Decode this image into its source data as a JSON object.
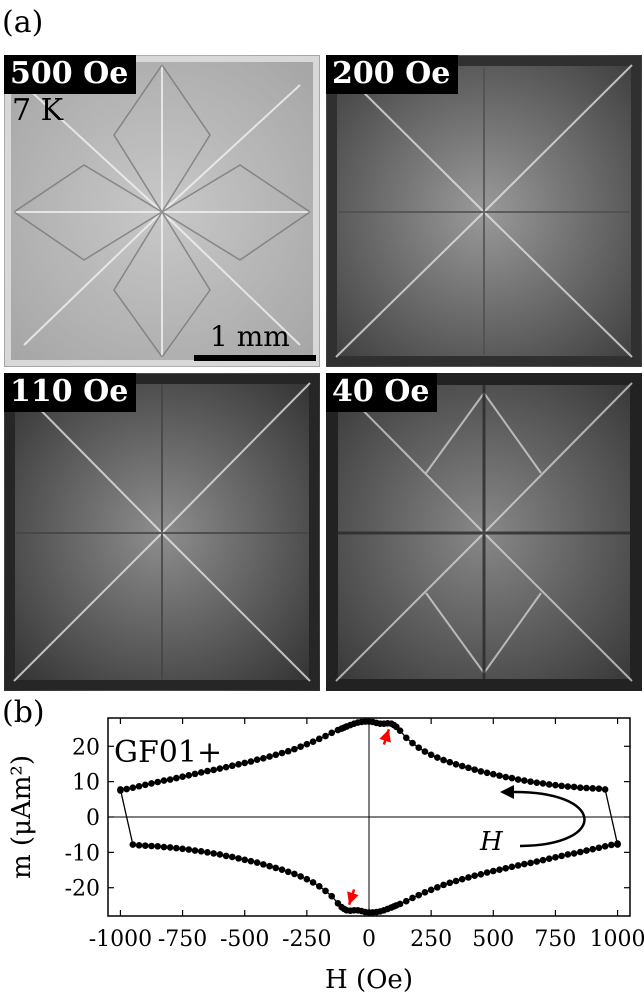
{
  "panel_a": {
    "label": "(a)",
    "images": [
      {
        "field": "500 Oe",
        "temperature": "7 K",
        "scalebar": "1 mm"
      },
      {
        "field": "200 Oe"
      },
      {
        "field": "110 Oe"
      },
      {
        "field": "40 Oe"
      }
    ]
  },
  "panel_b": {
    "label": "(b)",
    "sample_label": "GF01+",
    "loop_arrow_label": "H"
  },
  "chart_data": {
    "type": "scatter",
    "xlabel": "H (Oe)",
    "ylabel": "m (μAm²)",
    "xlim": [
      -1050,
      1050
    ],
    "ylim": [
      -28,
      28
    ],
    "xticks": [
      -1000,
      -750,
      -500,
      -250,
      0,
      250,
      500,
      750,
      1000
    ],
    "xtick_labels": [
      "-1000",
      "-750",
      "-500",
      "-250",
      "0",
      "250",
      "500",
      "750",
      "1000"
    ],
    "yticks": [
      -20,
      -10,
      0,
      10,
      20
    ],
    "ytick_labels": [
      "-20",
      "-10",
      "0",
      "10",
      "20"
    ],
    "grid": false,
    "series": [
      {
        "x": [
          1000,
          975,
          950,
          925,
          900,
          875,
          850,
          825,
          800,
          775,
          750,
          725,
          700,
          675,
          650,
          625,
          600,
          575,
          550,
          525,
          500,
          475,
          450,
          425,
          400,
          375,
          350,
          325,
          300,
          275,
          250,
          225,
          200,
          175,
          150,
          125,
          110,
          100,
          90,
          75,
          60,
          45,
          30,
          15,
          0,
          -15,
          -30,
          -45,
          -60,
          -75,
          -90,
          -100,
          -110,
          -125,
          -150,
          -175,
          -200,
          -225,
          -250,
          -275,
          -300,
          -325,
          -350,
          -375,
          -400,
          -425,
          -450,
          -475,
          -500,
          -525,
          -550,
          -575,
          -600,
          -625,
          -650,
          -675,
          -700,
          -725,
          -750,
          -775,
          -800,
          -825,
          -850,
          -875,
          -900,
          -925,
          -950,
          -1000
        ],
        "y": [
          -7.5,
          -7.9,
          -8.3,
          -8.7,
          -9.1,
          -9.5,
          -9.9,
          -10.3,
          -10.6,
          -11.0,
          -11.4,
          -11.8,
          -12.2,
          -12.6,
          -13.0,
          -13.3,
          -13.7,
          -14.1,
          -14.5,
          -14.9,
          -15.3,
          -15.7,
          -16.2,
          -16.6,
          -17.1,
          -17.6,
          -18.1,
          -18.6,
          -19.2,
          -19.9,
          -20.6,
          -21.3,
          -22.1,
          -22.9,
          -23.8,
          -24.6,
          -25.0,
          -25.3,
          -25.6,
          -26.0,
          -26.4,
          -26.7,
          -26.9,
          -27.0,
          -27.0,
          -26.9,
          -26.6,
          -26.4,
          -26.4,
          -26.5,
          -26.4,
          -26.0,
          -25.5,
          -24.4,
          -22.4,
          -20.9,
          -19.6,
          -18.5,
          -17.6,
          -16.8,
          -16.1,
          -15.5,
          -14.9,
          -14.4,
          -13.9,
          -13.4,
          -12.9,
          -12.5,
          -12.1,
          -11.7,
          -11.3,
          -11.0,
          -10.6,
          -10.3,
          -10.0,
          -9.7,
          -9.5,
          -9.2,
          -9.0,
          -8.8,
          -8.6,
          -8.5,
          -8.3,
          -8.2,
          -8.1,
          -8.0,
          -7.8,
          7.8
        ]
      },
      {
        "x": [
          -1000,
          -975,
          -950,
          -925,
          -900,
          -875,
          -850,
          -825,
          -800,
          -775,
          -750,
          -725,
          -700,
          -675,
          -650,
          -625,
          -600,
          -575,
          -550,
          -525,
          -500,
          -475,
          -450,
          -425,
          -400,
          -375,
          -350,
          -325,
          -300,
          -275,
          -250,
          -225,
          -200,
          -175,
          -150,
          -125,
          -110,
          -100,
          -90,
          -75,
          -60,
          -45,
          -30,
          -15,
          0,
          15,
          30,
          45,
          60,
          75,
          90,
          100,
          110,
          125,
          150,
          175,
          200,
          225,
          250,
          275,
          300,
          325,
          350,
          375,
          400,
          425,
          450,
          475,
          500,
          525,
          550,
          575,
          600,
          625,
          650,
          675,
          700,
          725,
          750,
          775,
          800,
          825,
          850,
          875,
          900,
          925,
          950,
          1000
        ],
        "y": [
          7.5,
          7.9,
          8.3,
          8.7,
          9.1,
          9.5,
          9.9,
          10.3,
          10.6,
          11.0,
          11.4,
          11.8,
          12.2,
          12.6,
          13.0,
          13.3,
          13.7,
          14.1,
          14.5,
          14.9,
          15.3,
          15.7,
          16.2,
          16.6,
          17.1,
          17.6,
          18.1,
          18.6,
          19.2,
          19.9,
          20.6,
          21.3,
          22.1,
          22.9,
          23.8,
          24.6,
          25.0,
          25.3,
          25.6,
          26.0,
          26.4,
          26.7,
          26.9,
          27.0,
          27.0,
          26.9,
          26.6,
          26.4,
          26.4,
          26.5,
          26.4,
          26.0,
          25.5,
          24.4,
          22.4,
          20.9,
          19.6,
          18.5,
          17.6,
          16.8,
          16.1,
          15.5,
          14.9,
          14.4,
          13.9,
          13.4,
          12.9,
          12.5,
          12.1,
          11.7,
          11.3,
          11.0,
          10.6,
          10.3,
          10.0,
          9.7,
          9.5,
          9.2,
          9.0,
          8.8,
          8.6,
          8.5,
          8.3,
          8.2,
          8.1,
          8.0,
          7.8,
          -7.8
        ]
      }
    ],
    "annotations": [
      {
        "type": "arrow",
        "color": "#ff0000",
        "from": [
          60,
          20.5
        ],
        "to": [
          80,
          24.8
        ]
      },
      {
        "type": "arrow",
        "color": "#ff0000",
        "from": [
          -60,
          -20.5
        ],
        "to": [
          -80,
          -24.8
        ]
      }
    ],
    "colors": {
      "markers": "#000000",
      "annotation_arrows": "#ff0000"
    }
  }
}
